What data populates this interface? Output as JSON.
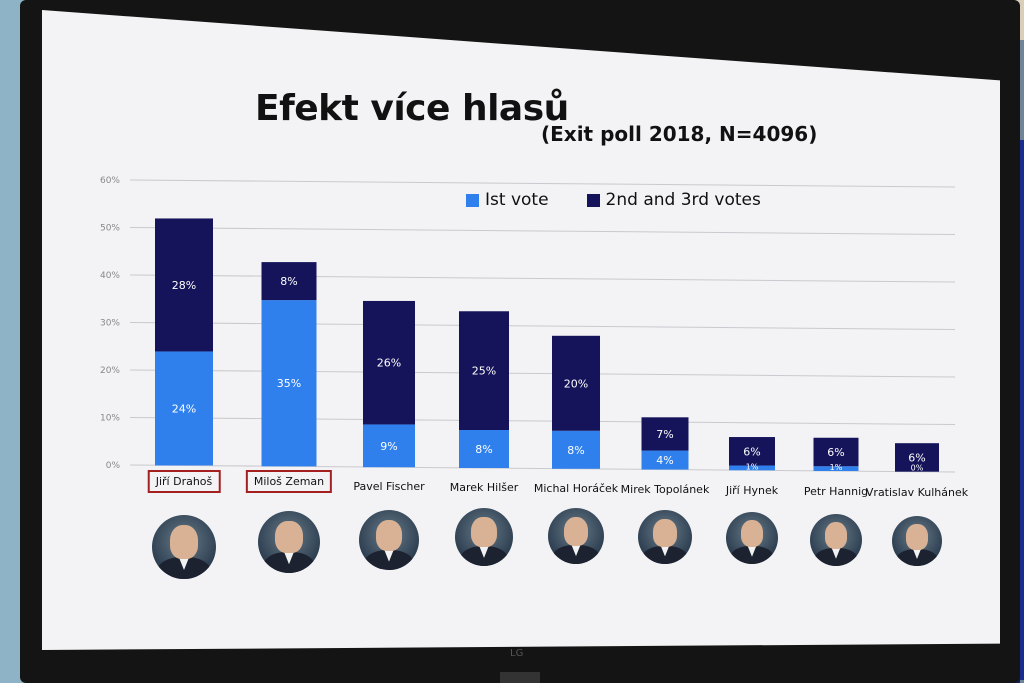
{
  "title": "Efekt více hlasů",
  "subtitle": "(Exit poll 2018, N=4096)",
  "legend": {
    "first": "Ist vote",
    "second": "2nd and 3rd votes"
  },
  "colors": {
    "first": "#2f80ed",
    "second": "#15145a",
    "highlight_border": "#a42020"
  },
  "tv_brand": "LG",
  "chart_data": {
    "type": "bar",
    "stacked": true,
    "title": "Efekt více hlasů",
    "subtitle": "(Exit poll 2018, N=4096)",
    "categories": [
      "Jiří Drahoš",
      "Miloš Zeman",
      "Pavel Fischer",
      "Marek Hilšer",
      "Michal Horáček",
      "Mirek Topolánek",
      "Jiří Hynek",
      "Petr Hannig",
      "Vratislav Kulhánek"
    ],
    "series": [
      {
        "name": "Ist vote",
        "values": [
          24,
          35,
          9,
          8,
          8,
          4,
          1,
          1,
          0
        ],
        "labels": [
          "24%",
          "35%",
          "9%",
          "8%",
          "8%",
          "4%",
          "1%",
          "1%",
          "0%"
        ]
      },
      {
        "name": "2nd and 3rd votes",
        "values": [
          28,
          8,
          26,
          25,
          20,
          7,
          6,
          6,
          6
        ],
        "labels": [
          "28%",
          "8%",
          "26%",
          "25%",
          "20%",
          "7%",
          "6%",
          "6%",
          "6%"
        ]
      }
    ],
    "yticks": [
      "60%",
      "50%",
      "40%",
      "30%",
      "20%",
      "10%",
      "0%"
    ],
    "ylim": [
      0,
      60
    ],
    "grid": true,
    "legend_position": "top-right",
    "highlighted": [
      "Jiří Drahoš",
      "Miloš Zeman"
    ]
  }
}
